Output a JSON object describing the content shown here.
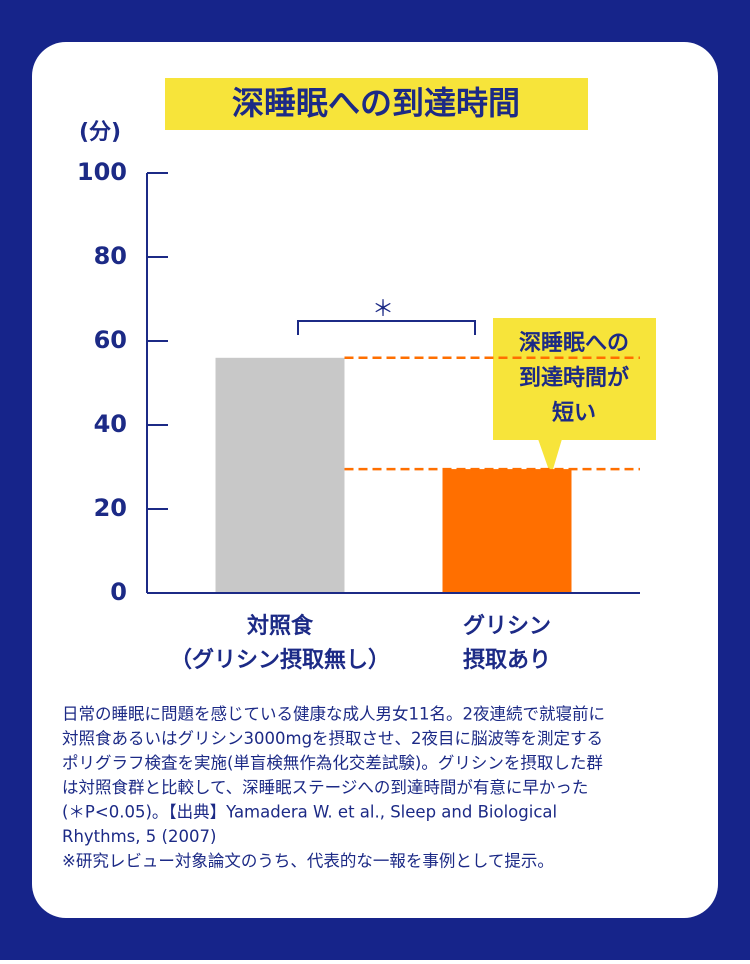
{
  "chart_data": {
    "type": "bar",
    "title": "深睡眠への到達時間",
    "y_label": "(分)",
    "categories": [
      [
        "対照食",
        "（グリシン摂取無し）"
      ],
      [
        "グリシン",
        "摂取あり"
      ]
    ],
    "values": [
      56,
      29.5
    ],
    "colors": [
      "#c8c8c8",
      "#ff6f00"
    ],
    "ylim": [
      0,
      100
    ],
    "yticks": [
      0,
      20,
      40,
      60,
      80,
      100
    ],
    "significance": "＊",
    "callout": [
      "深睡眠への",
      "到達時間が",
      "短い"
    ],
    "notes": [
      "日常の睡眠に問題を感じている健康な成人男女11名。2夜連続で就寝前に",
      "対照食あるいはグリシン3000mgを摂取させ、2夜目に脳波等を測定する",
      "ポリグラフ検査を実施(単盲検無作為化交差試験)。グリシンを摂取した群",
      "は対照食群と比較して、深睡眠ステージへの到達時間が有意に早かった",
      "(＊P<0.05)。【出典】Yamadera W. et al., Sleep and Biological",
      "Rhythms, 5 (2007)",
      "※研究レビュー対象論文のうち、代表的な一報を事例として提示。"
    ]
  }
}
